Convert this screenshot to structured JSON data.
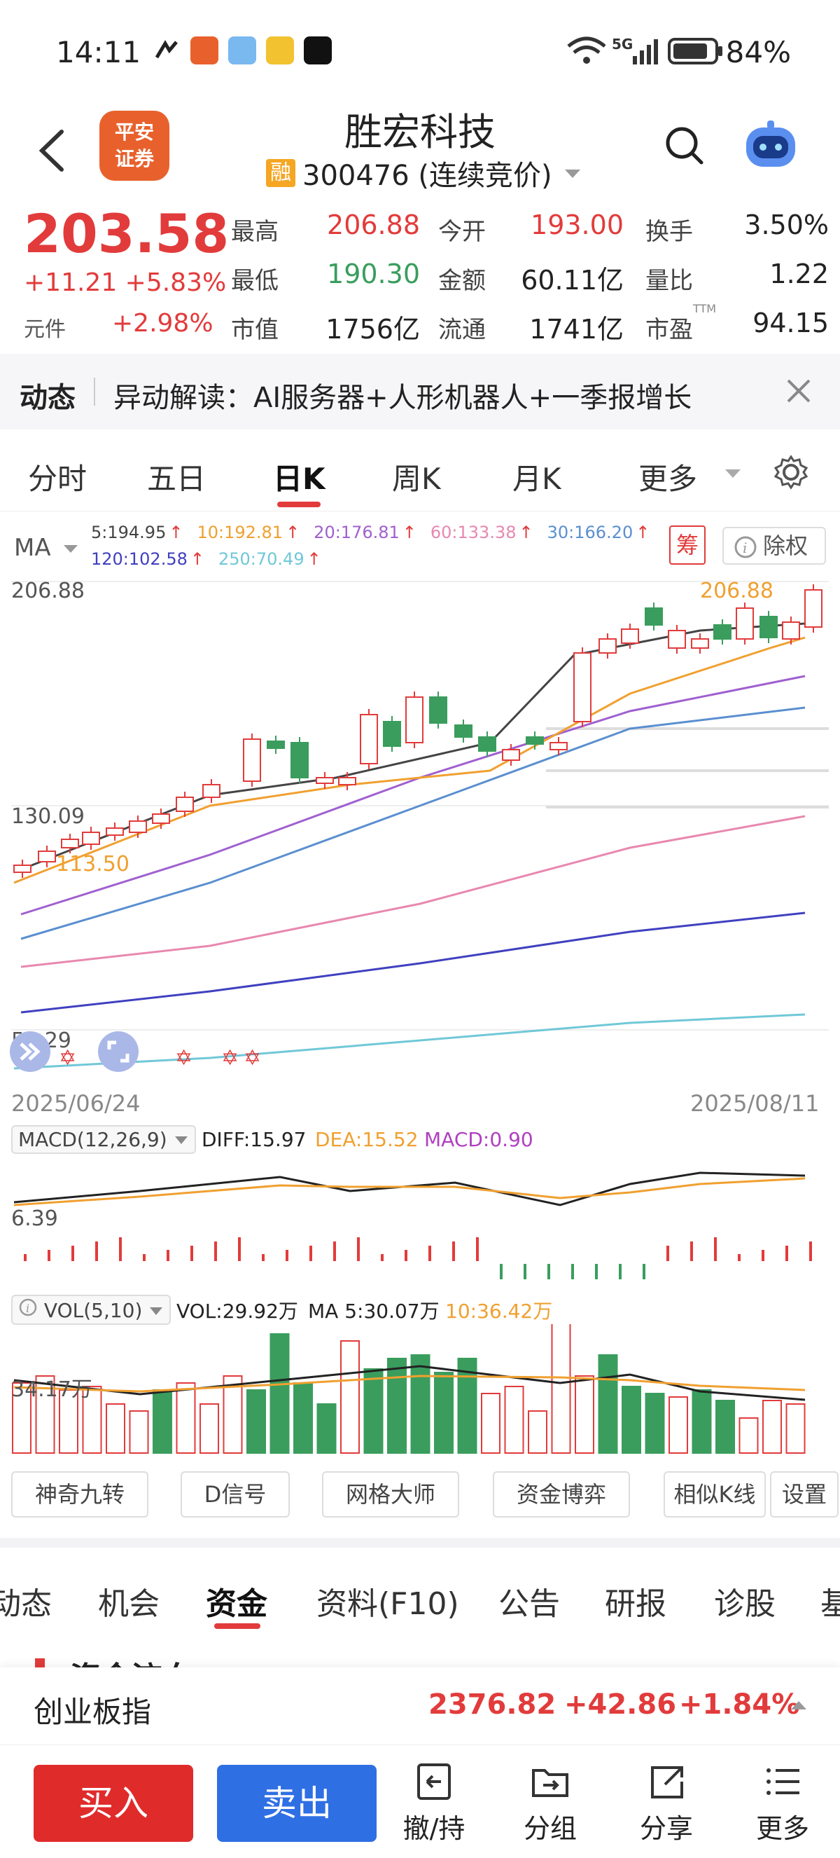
{
  "status_bar": {
    "time": "14:11",
    "battery": "84%",
    "network": "5G"
  },
  "header": {
    "logo_line1": "平安",
    "logo_line2": "证券",
    "stock_name": "胜宏科技",
    "badge": "融",
    "code_line": "300476 (连续竞价)"
  },
  "quote": {
    "price": "203.58",
    "change": "+11.21 +5.83%",
    "unit_label": "元件",
    "unit_change": "+2.98%",
    "cells": [
      {
        "label": "最高",
        "value": "206.88",
        "color": "red"
      },
      {
        "label": "今开",
        "value": "193.00",
        "color": "red"
      },
      {
        "label": "换手",
        "value": "3.50%",
        "color": "dark"
      },
      {
        "label": "最低",
        "value": "190.30",
        "color": "green"
      },
      {
        "label": "金额",
        "value": "60.11亿",
        "color": "dark"
      },
      {
        "label": "量比",
        "value": "1.22",
        "color": "dark"
      },
      {
        "label": "市值",
        "value": "1756亿",
        "color": "dark"
      },
      {
        "label": "流通",
        "value": "1741亿",
        "color": "dark"
      },
      {
        "label": "市盈",
        "value": "94.15",
        "color": "dark",
        "sup": "TTM"
      }
    ]
  },
  "news": {
    "tag": "动态",
    "text": "异动解读：AI服务器+人形机器人+一季报增长"
  },
  "chart_tabs": [
    "分时",
    "五日",
    "日K",
    "周K",
    "月K",
    "更多"
  ],
  "chart": {
    "ma_label": "MA",
    "ma_line1": [
      {
        "text": "5:194.95",
        "color": "#444444"
      },
      {
        "text": "10:192.81",
        "color": "#f0a030"
      },
      {
        "text": "20:176.81",
        "color": "#a060d0"
      },
      {
        "text": "60:133.38",
        "color": "#e888b0"
      },
      {
        "text": "30:166.20",
        "color": "#5a8fd0"
      }
    ],
    "ma_line2": [
      {
        "text": "120:102.58",
        "color": "#4040c0"
      },
      {
        "text": "250:70.49",
        "color": "#70c8d8"
      }
    ],
    "chou": "筹",
    "chuquan": "除权",
    "y_max": "206.88",
    "y_mid": "130.09",
    "y_min": "53.29",
    "peak_label": "206.88",
    "low_label": "113.50",
    "date_start": "2025/06/24",
    "date_end": "2025/08/11"
  },
  "macd": {
    "label": "MACD(12,26,9)",
    "diff": "DIFF:15.97",
    "dea": "DEA:15.52",
    "macd": "MACD:0.90",
    "axis": "6.39"
  },
  "vol": {
    "label": "VOL(5,10)",
    "vol": "VOL:29.92万",
    "ma5": "MA 5:30.07万",
    "ma10": "10:36.42万",
    "axis": "34.17万"
  },
  "tools": [
    "神奇九转",
    "D信号",
    "网格大师",
    "资金博弈",
    "相似K线",
    "设置"
  ],
  "section_tabs": [
    "动态",
    "机会",
    "资金",
    "资料(F10)",
    "公告",
    "研报",
    "诊股",
    "基"
  ],
  "section_title": "资金流向",
  "index": {
    "name": "创业板指",
    "value": "2376.82",
    "change": "+42.86",
    "pct": "+1.84%"
  },
  "actions": {
    "buy": "买入",
    "sell": "卖出",
    "items": [
      "撤/持",
      "分组",
      "分享",
      "更多"
    ]
  }
}
